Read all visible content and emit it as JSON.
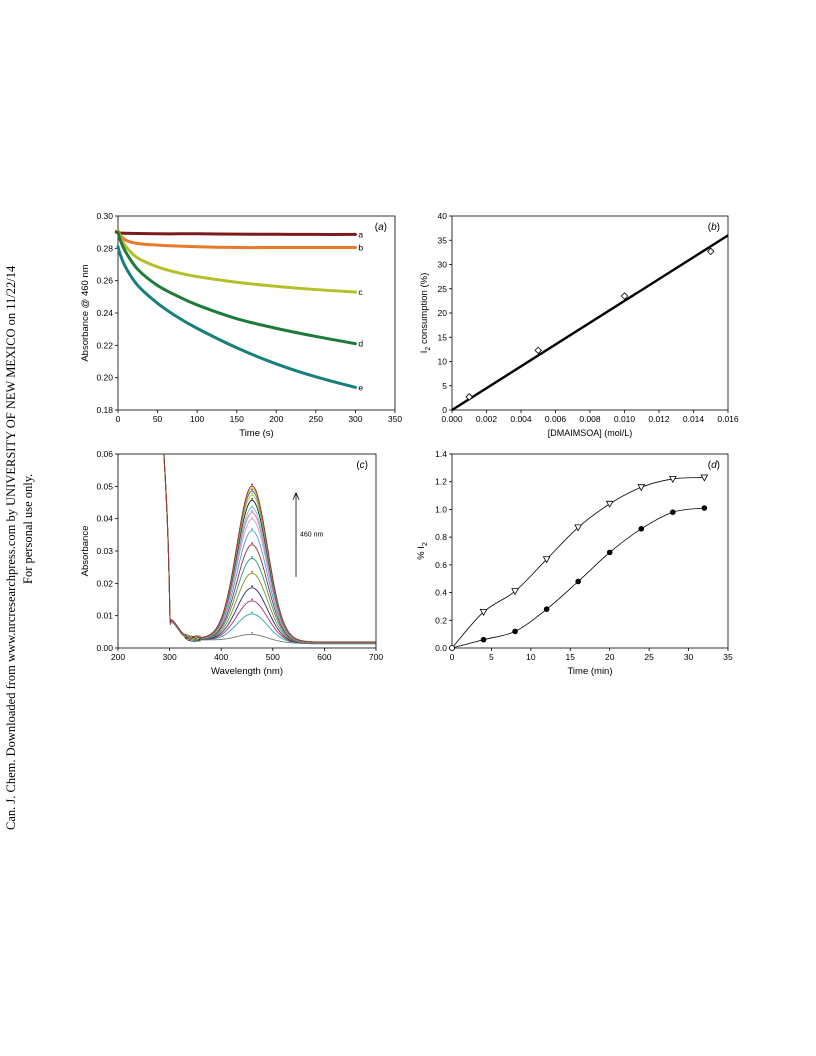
{
  "watermark": {
    "line1": "Can. J. Chem. Downloaded from www.nrcresearchpress.com by UNIVERSITY OF NEW MEXICO on 11/22/14",
    "line2": "For personal use only."
  },
  "chart_data": [
    {
      "id": "a",
      "panel_label": "a",
      "type": "line",
      "xlabel": "Time (s)",
      "ylabel": "Absorbance @ 460 nm",
      "xlim": [
        0,
        350
      ],
      "ylim": [
        0.18,
        0.3
      ],
      "xticks": [
        0,
        50,
        100,
        150,
        200,
        250,
        300,
        350
      ],
      "yticks": [
        0.18,
        0.2,
        0.22,
        0.24,
        0.26,
        0.28,
        0.3
      ],
      "ytick_decimals": 2,
      "grid": false,
      "series": [
        {
          "name": "a",
          "color": "#7b1a1a",
          "x": [
            0,
            2,
            50,
            100,
            150,
            200,
            250,
            300
          ],
          "y": [
            0.291,
            0.2895,
            0.289,
            0.289,
            0.2888,
            0.2887,
            0.2886,
            0.2886
          ]
        },
        {
          "name": "b",
          "color": "#e8792a",
          "x": [
            0,
            3,
            10,
            25,
            50,
            100,
            150,
            200,
            250,
            300
          ],
          "y": [
            0.291,
            0.288,
            0.285,
            0.283,
            0.282,
            0.281,
            0.2805,
            0.2805,
            0.2805,
            0.2805
          ]
        },
        {
          "name": "c",
          "color": "#b5bf2a",
          "x": [
            0,
            3,
            10,
            25,
            50,
            75,
            100,
            150,
            200,
            250,
            300
          ],
          "y": [
            0.291,
            0.287,
            0.281,
            0.274,
            0.2685,
            0.265,
            0.2625,
            0.259,
            0.2565,
            0.2545,
            0.253
          ]
        },
        {
          "name": "d",
          "color": "#1e7a38",
          "x": [
            0,
            3,
            10,
            25,
            50,
            75,
            100,
            150,
            200,
            250,
            300
          ],
          "y": [
            0.29,
            0.285,
            0.2775,
            0.267,
            0.257,
            0.2505,
            0.245,
            0.2365,
            0.2305,
            0.2255,
            0.221
          ]
        },
        {
          "name": "e",
          "color": "#17807a",
          "x": [
            0,
            3,
            10,
            25,
            50,
            75,
            100,
            150,
            200,
            250,
            300
          ],
          "y": [
            0.281,
            0.276,
            0.268,
            0.257,
            0.246,
            0.2375,
            0.2305,
            0.2185,
            0.2085,
            0.2005,
            0.194
          ]
        }
      ]
    },
    {
      "id": "b",
      "panel_label": "b",
      "type": "scatter",
      "xlabel": "[DMAIMSOA] (mol/L)",
      "ylabel_main": "I",
      "ylabel_sub": "2",
      "ylabel_rest": " consumption (%)",
      "xlim": [
        0,
        0.016
      ],
      "ylim": [
        0,
        40
      ],
      "xticks": [
        0,
        0.002,
        0.004,
        0.006,
        0.008,
        0.01,
        0.012,
        0.014,
        0.016
      ],
      "xtick_decimals": 3,
      "yticks": [
        0,
        5,
        10,
        15,
        20,
        25,
        30,
        35,
        40
      ],
      "ytick_decimals": 0,
      "grid": false,
      "series": [
        {
          "marker": "diamond",
          "x": [
            0.001,
            0.005,
            0.01,
            0.015
          ],
          "y": [
            2.7,
            12.3,
            23.5,
            32.7
          ]
        }
      ],
      "fit_line": {
        "x": [
          0,
          0.016
        ],
        "y": [
          0,
          36
        ]
      }
    },
    {
      "id": "c",
      "panel_label": "c",
      "type": "line",
      "xlabel": "Wavelength (nm)",
      "ylabel": "Absorbance",
      "xlim": [
        200,
        700
      ],
      "ylim": [
        0,
        0.06
      ],
      "xticks": [
        200,
        300,
        400,
        500,
        600,
        700
      ],
      "yticks": [
        0,
        0.01,
        0.02,
        0.03,
        0.04,
        0.05,
        0.06
      ],
      "ytick_decimals": 2,
      "grid": false,
      "annotation": "460 nm",
      "peak_center_nm": 460,
      "series": [
        {
          "color": "#777777",
          "peak": 0.0022
        },
        {
          "color": "#2aa6a6",
          "peak": 0.0085
        },
        {
          "color": "#a0307a",
          "peak": 0.0125
        },
        {
          "color": "#2a2a6a",
          "peak": 0.0165
        },
        {
          "color": "#8a8a2a",
          "peak": 0.021
        },
        {
          "color": "#2a9a7a",
          "peak": 0.0255
        },
        {
          "color": "#9a2a2a",
          "peak": 0.0297
        },
        {
          "color": "#4a9ad8",
          "peak": 0.034
        },
        {
          "color": "#c8a0c8",
          "peak": 0.0375
        },
        {
          "color": "#d870a8",
          "peak": 0.0395
        },
        {
          "color": "#60c0d8",
          "peak": 0.041
        },
        {
          "color": "#1a1a1a",
          "peak": 0.0432
        },
        {
          "color": "#a8d040",
          "peak": 0.0448
        },
        {
          "color": "#3a6ab0",
          "peak": 0.046
        },
        {
          "color": "#e8b020",
          "peak": 0.0468
        },
        {
          "color": "#8a2a2a",
          "peak": 0.0475
        }
      ]
    },
    {
      "id": "d",
      "panel_label": "d",
      "type": "line",
      "xlabel": "Time (min)",
      "ylabel_main": "% I",
      "ylabel_sub": "2",
      "xlim": [
        0,
        35
      ],
      "ylim": [
        0,
        1.4
      ],
      "xticks": [
        0,
        5,
        10,
        15,
        20,
        25,
        30,
        35
      ],
      "xtick_decimals": 0,
      "yticks": [
        0,
        0.2,
        0.4,
        0.6,
        0.8,
        1.0,
        1.2,
        1.4
      ],
      "ytick_decimals": 1,
      "grid": false,
      "series": [
        {
          "marker": "triangle-down-open",
          "x": [
            0,
            4,
            8,
            12,
            16,
            20,
            24,
            28,
            32
          ],
          "y": [
            0,
            0.26,
            0.41,
            0.64,
            0.87,
            1.04,
            1.16,
            1.22,
            1.23
          ]
        },
        {
          "marker": "circle-filled",
          "x": [
            0,
            4,
            8,
            12,
            16,
            20,
            24,
            28,
            32
          ],
          "y": [
            0,
            0.06,
            0.12,
            0.28,
            0.48,
            0.69,
            0.86,
            0.98,
            1.01
          ]
        }
      ]
    }
  ]
}
